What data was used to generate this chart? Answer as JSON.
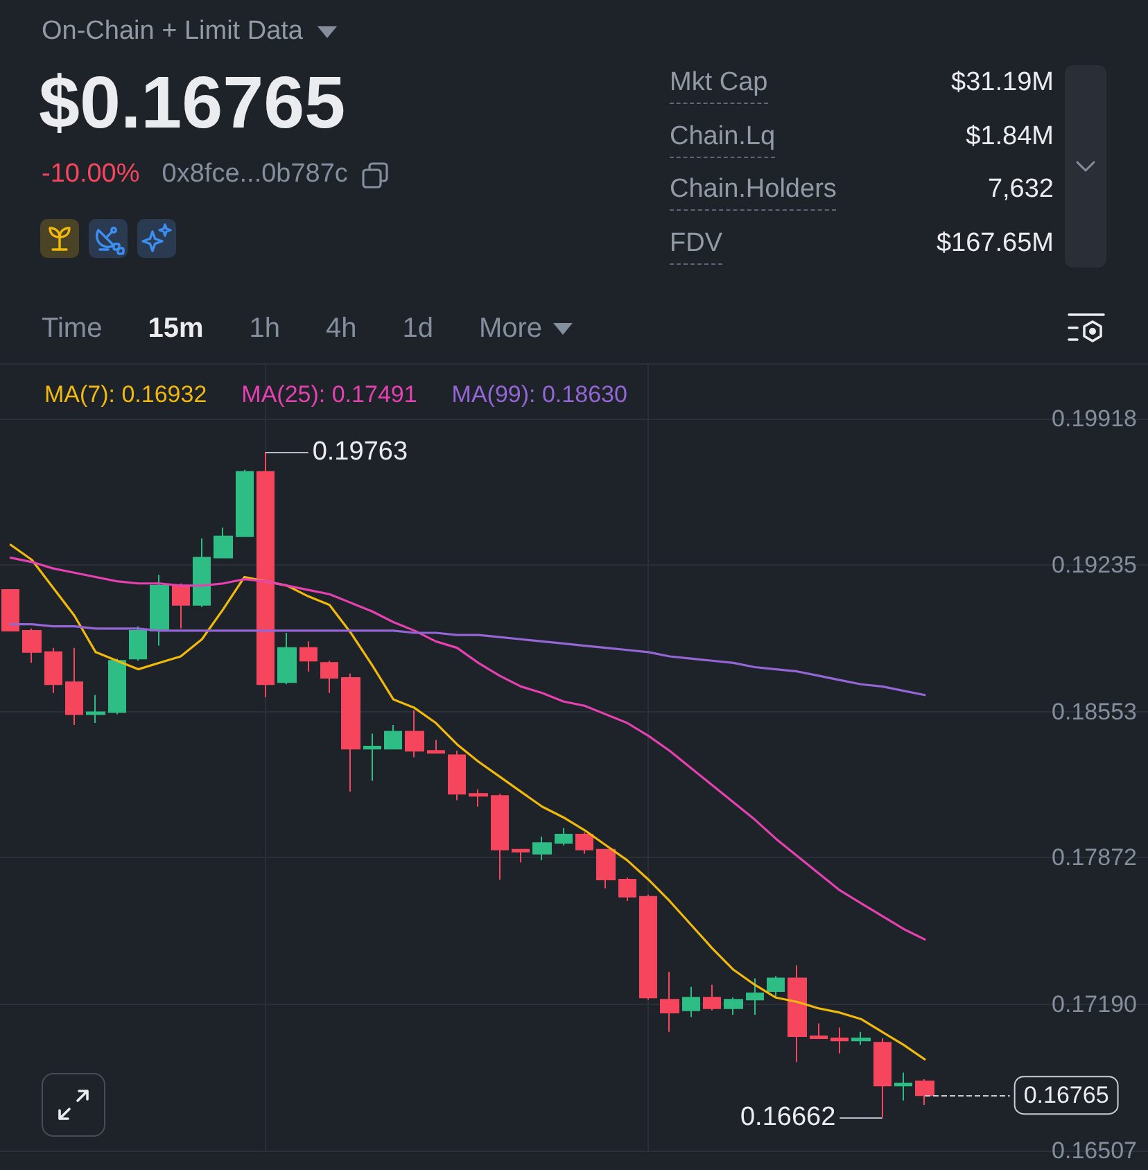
{
  "chart_data": {
    "type": "candlestick",
    "title": "On-Chain + Limit Data",
    "subtitle": "$0.16765",
    "annotations": [
      "-10.00%",
      "0x8fce...0b787c",
      "Mkt Cap",
      "$31.19M",
      "Chain.Lq",
      "$1.84M",
      "Chain.Holders",
      "7,632",
      "FDV",
      "$167.65M",
      "Time",
      "15m",
      "1h",
      "4h",
      "1d",
      "More",
      "0.19763",
      "0.16662"
    ],
    "categories": [
      null,
      null,
      null,
      null,
      null,
      null,
      null,
      null,
      null,
      null,
      null,
      null,
      null,
      null,
      null,
      null,
      null,
      null,
      null,
      null,
      null,
      null,
      null,
      null,
      null,
      null,
      null,
      null,
      null,
      null,
      null,
      null,
      null,
      null,
      null,
      null,
      null,
      null,
      null,
      null,
      null,
      null,
      null,
      null
    ],
    "ohlc": [
      [
        0.1912,
        0.1912,
        0.1893,
        0.1893
      ],
      [
        0.1893,
        0.1894,
        0.1878,
        0.1883
      ],
      [
        0.1883,
        0.1885,
        0.1864,
        0.1868
      ],
      [
        0.1869,
        0.1885,
        0.1849,
        0.1854
      ],
      [
        0.1854,
        0.1863,
        0.185,
        0.1855
      ],
      [
        0.1855,
        0.188,
        0.1854,
        0.1879
      ],
      [
        0.188,
        0.1895,
        0.1879,
        0.1893
      ],
      [
        0.1893,
        0.1919,
        0.1886,
        0.1914
      ],
      [
        0.1914,
        0.1915,
        0.1894,
        0.1905
      ],
      [
        0.1905,
        0.1936,
        0.1904,
        0.1927
      ],
      [
        0.1927,
        0.1941,
        0.1927,
        0.1937
      ],
      [
        0.1937,
        0.1968,
        0.1937,
        0.1967
      ],
      [
        0.1967,
        0.19763,
        0.1862,
        0.1868
      ],
      [
        0.1869,
        0.1892,
        0.1868,
        0.1885
      ],
      [
        0.1885,
        0.1888,
        0.1874,
        0.1879
      ],
      [
        0.1878,
        0.1879,
        0.1864,
        0.1871
      ],
      [
        0.1871,
        0.1873,
        0.1818,
        0.1838
      ],
      [
        0.1838,
        0.1845,
        0.1823,
        0.1839
      ],
      [
        0.1838,
        0.1849,
        0.1838,
        0.1846
      ],
      [
        0.1846,
        0.1856,
        0.1834,
        0.1837
      ],
      [
        0.1837,
        0.1842,
        0.1836,
        0.1836
      ],
      [
        0.1835,
        0.1837,
        0.1814,
        0.1817
      ],
      [
        0.1817,
        0.1819,
        0.1811,
        0.1816
      ],
      [
        0.1816,
        0.1817,
        0.1777,
        0.1791
      ],
      [
        0.1791,
        0.1791,
        0.1785,
        0.179
      ],
      [
        0.1789,
        0.1797,
        0.1786,
        0.1794
      ],
      [
        0.1794,
        0.1801,
        0.1793,
        0.1798
      ],
      [
        0.1798,
        0.1799,
        0.1789,
        0.1791
      ],
      [
        0.1791,
        0.1791,
        0.1773,
        0.1777
      ],
      [
        0.1777,
        0.1778,
        0.1767,
        0.1769
      ],
      [
        0.1769,
        0.177,
        0.1721,
        0.1722
      ],
      [
        0.1721,
        0.1734,
        0.1706,
        0.1715
      ],
      [
        0.1716,
        0.1727,
        0.1713,
        0.1722
      ],
      [
        0.1722,
        0.1728,
        0.1716,
        0.1717
      ],
      [
        0.1717,
        0.1722,
        0.1714,
        0.1721
      ],
      [
        0.1721,
        0.1731,
        0.1714,
        0.1724
      ],
      [
        0.1725,
        0.1732,
        0.1722,
        0.1731
      ],
      [
        0.1731,
        0.1737,
        0.1692,
        0.1704
      ],
      [
        0.1704,
        0.171,
        0.1703,
        0.1703
      ],
      [
        0.1703,
        0.1708,
        0.1696,
        0.1702
      ],
      [
        0.1702,
        0.1706,
        0.17,
        0.1703
      ],
      [
        0.1701,
        0.1703,
        0.16662,
        0.1681
      ],
      [
        0.1681,
        0.1687,
        0.1674,
        0.1682
      ],
      [
        0.1683,
        0.1684,
        0.1672,
        0.16765
      ]
    ],
    "colors": [
      "#f6465d",
      "#f6465d",
      "#f6465d",
      "#f6465d",
      "#2ebd85",
      "#2ebd85",
      "#2ebd85",
      "#2ebd85",
      "#f6465d",
      "#2ebd85",
      "#2ebd85",
      "#2ebd85",
      "#f6465d",
      "#2ebd85",
      "#f6465d",
      "#f6465d",
      "#f6465d",
      "#2ebd85",
      "#2ebd85",
      "#f6465d",
      "#f6465d",
      "#f6465d",
      "#f6465d",
      "#f6465d",
      "#f6465d",
      "#2ebd85",
      "#2ebd85",
      "#f6465d",
      "#f6465d",
      "#f6465d",
      "#f6465d",
      "#f6465d",
      "#2ebd85",
      "#f6465d",
      "#2ebd85",
      "#2ebd85",
      "#2ebd85",
      "#f6465d",
      "#f6465d",
      "#f6465d",
      "#2ebd85",
      "#f6465d",
      "#2ebd85",
      "#f6465d"
    ],
    "series": [
      {
        "name": "MA(7): 0.16932",
        "type": "line",
        "color": "#f0b90b",
        "values": [
          0.1933,
          0.1926,
          0.1913,
          0.19,
          0.1883,
          0.1879,
          0.1875,
          0.1878,
          0.1881,
          0.1889,
          0.1903,
          0.1918,
          0.1916,
          0.1914,
          0.1909,
          0.1905,
          0.1892,
          0.1877,
          0.1861,
          0.1857,
          0.185,
          0.184,
          0.1832,
          0.1825,
          0.1818,
          0.1811,
          0.1806,
          0.18,
          0.1793,
          0.1786,
          0.1777,
          0.1767,
          0.1756,
          0.1745,
          0.1735,
          0.1728,
          0.1722,
          0.172,
          0.1717,
          0.1715,
          0.1712,
          0.1706,
          0.17,
          0.16932
        ]
      },
      {
        "name": "MA(25): 0.17491",
        "type": "line",
        "color": "#e541b0",
        "values": [
          0.1927,
          0.1925,
          0.1922,
          0.192,
          0.1918,
          0.1916,
          0.1915,
          0.1915,
          0.1914,
          0.1914,
          0.1915,
          0.1917,
          0.1916,
          0.1914,
          0.1912,
          0.191,
          0.1906,
          0.1902,
          0.1897,
          0.1893,
          0.1888,
          0.1885,
          0.1878,
          0.1872,
          0.1867,
          0.1864,
          0.186,
          0.1858,
          0.1854,
          0.185,
          0.1844,
          0.1837,
          0.1829,
          0.1821,
          0.1813,
          0.1805,
          0.1796,
          0.1788,
          0.178,
          0.1772,
          0.1766,
          0.176,
          0.1754,
          0.17491
        ]
      },
      {
        "name": "MA(99): 0.18630",
        "type": "line",
        "color": "#9466d6",
        "values": [
          0.1896,
          0.1896,
          0.1895,
          0.1895,
          0.1894,
          0.1894,
          0.1894,
          0.1893,
          0.1893,
          0.1893,
          0.1893,
          0.1893,
          0.1893,
          0.1893,
          0.1893,
          0.1893,
          0.1893,
          0.1893,
          0.1893,
          0.1892,
          0.1892,
          0.1891,
          0.1891,
          0.189,
          0.1889,
          0.1888,
          0.1887,
          0.1886,
          0.1885,
          0.1884,
          0.1883,
          0.1881,
          0.188,
          0.1879,
          0.1878,
          0.1876,
          0.1875,
          0.1874,
          0.1872,
          0.187,
          0.1868,
          0.1867,
          0.1865,
          0.1863
        ]
      }
    ],
    "ylim": [
      0.16507,
      0.2017
    ],
    "yticks": [
      0.16507,
      {
        "value": 0.1719,
        "label": "0.17190"
      },
      0.17872,
      0.18553,
      0.19235,
      0.19918
    ],
    "ref_lines": [
      {
        "axis": "y",
        "value": 0.16765,
        "label": "0.16765",
        "color": "#c9cdd4",
        "line_style": "dashed"
      }
    ],
    "grid": true,
    "legend": "top",
    "tick_labels": "y"
  }
}
